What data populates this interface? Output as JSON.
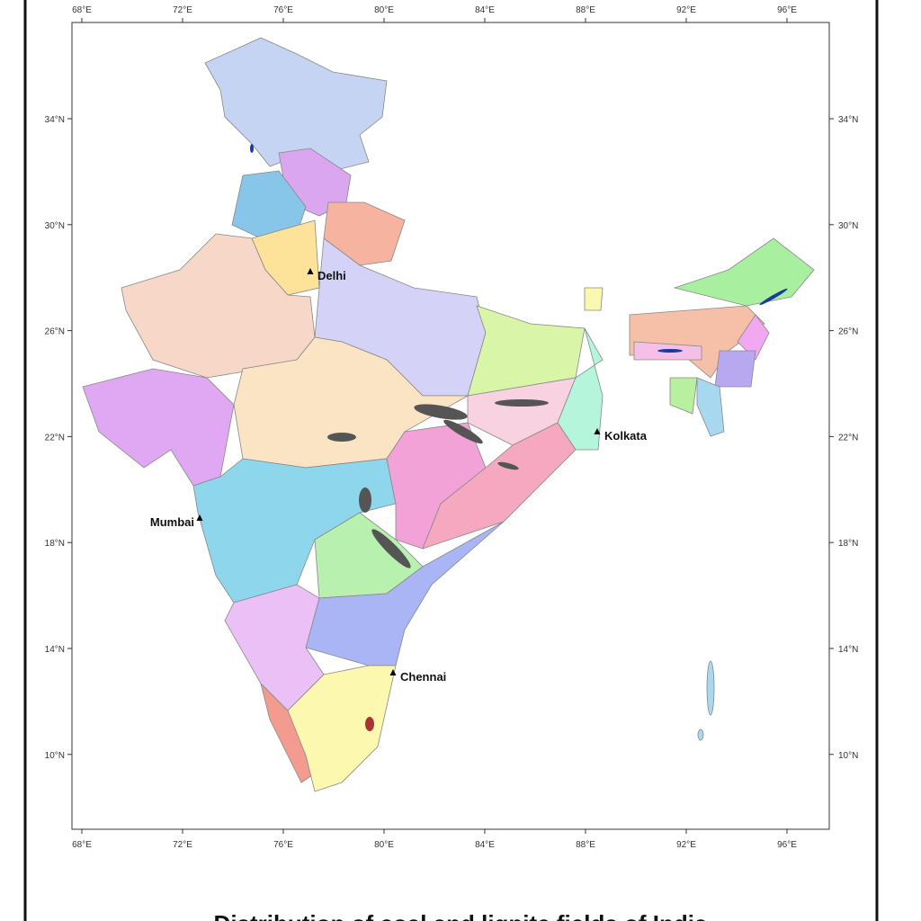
{
  "map": {
    "title": "Distribution of coal and lignite fields of India",
    "xticks": [
      {
        "value": 68,
        "label": "68°E"
      },
      {
        "value": 72,
        "label": "72°E"
      },
      {
        "value": 76,
        "label": "76°E"
      },
      {
        "value": 80,
        "label": "80°E"
      },
      {
        "value": 84,
        "label": "84°E"
      },
      {
        "value": 88,
        "label": "88°E"
      },
      {
        "value": 92,
        "label": "92°E"
      },
      {
        "value": 96,
        "label": "96°E"
      }
    ],
    "yticks": [
      {
        "value": 34,
        "label": "34°N"
      },
      {
        "value": 30,
        "label": "30°N"
      },
      {
        "value": 26,
        "label": "26°N"
      },
      {
        "value": 22,
        "label": "22°N"
      },
      {
        "value": 18,
        "label": "18°N"
      },
      {
        "value": 14,
        "label": "14°N"
      },
      {
        "value": 10,
        "label": "10°N"
      }
    ],
    "cities": [
      "Delhi",
      "Kolkata",
      "Mumbai",
      "Chennai"
    ]
  }
}
